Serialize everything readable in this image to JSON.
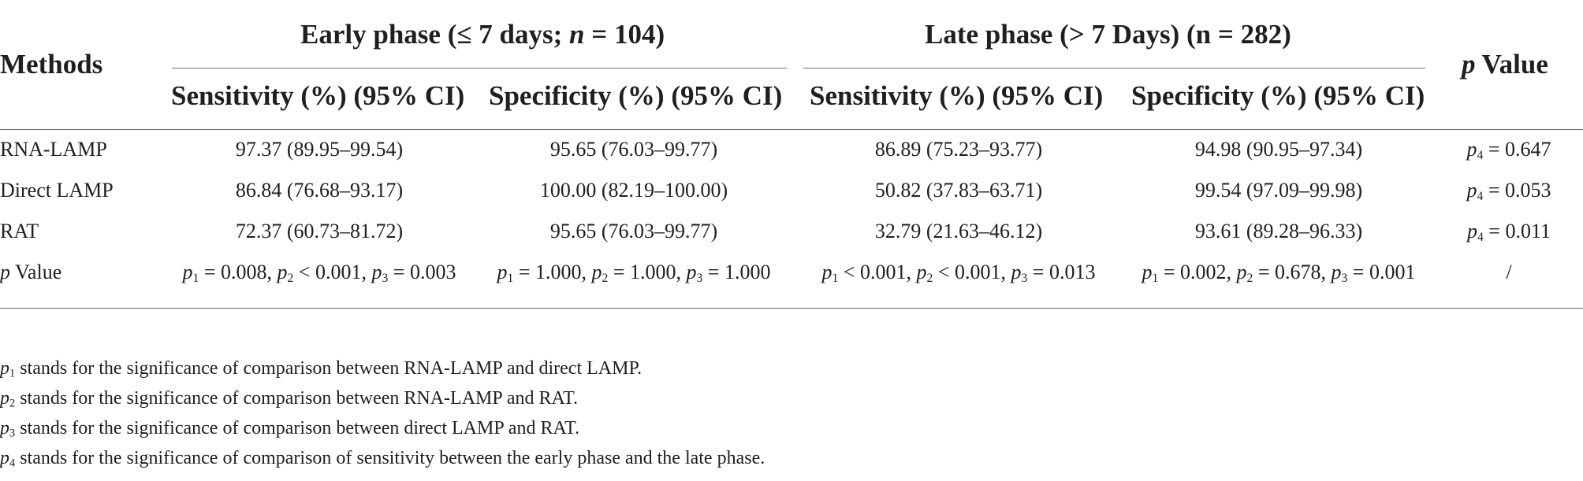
{
  "table": {
    "header": {
      "methods": "Methods",
      "early_group": "Early phase (≤ 7 days; n = 104)",
      "late_group": "Late phase (> 7 Days) (n = 282)",
      "p_value": "p Value",
      "sub_cols": [
        "Sensitivity (%) (95% CI)",
        "Specificity (%) (95% CI)",
        "Sensitivity (%) (95% CI)",
        "Specificity (%) (95% CI)"
      ]
    },
    "rows": [
      {
        "method": "RNA-LAMP",
        "cells": [
          "97.37 (89.95–99.54)",
          "95.65 (76.03–99.77)",
          "86.89 (75.23–93.77)",
          "94.98 (90.95–97.34)"
        ],
        "p": "p4 = 0.647"
      },
      {
        "method": "Direct LAMP",
        "cells": [
          "86.84 (76.68–93.17)",
          "100.00 (82.19–100.00)",
          "50.82 (37.83–63.71)",
          "99.54 (97.09–99.98)"
        ],
        "p": "p4 = 0.053"
      },
      {
        "method": "RAT",
        "cells": [
          "72.37 (60.73–81.72)",
          "95.65 (76.03–99.77)",
          "32.79 (21.63–46.12)",
          "93.61 (89.28–96.33)"
        ],
        "p": "p4 = 0.011"
      }
    ],
    "pvalue_row": {
      "label": "p Value",
      "cells": [
        "p1 = 0.008, p2 < 0.001, p3 = 0.003",
        "p1 = 1.000, p2 = 1.000, p3 = 1.000",
        "p1 < 0.001, p2 < 0.001, p3 = 0.013",
        "p1 = 0.002, p2 = 0.678, p3 = 0.001"
      ],
      "last": "/"
    }
  },
  "footnotes": [
    "p1 stands for the significance of comparison between RNA-LAMP and direct LAMP.",
    "p2 stands for the significance of comparison between RNA-LAMP and RAT.",
    "p3 stands for the significance of comparison between direct LAMP and RAT.",
    "p4 stands for the significance of comparison of sensitivity between the early phase and the late phase."
  ]
}
